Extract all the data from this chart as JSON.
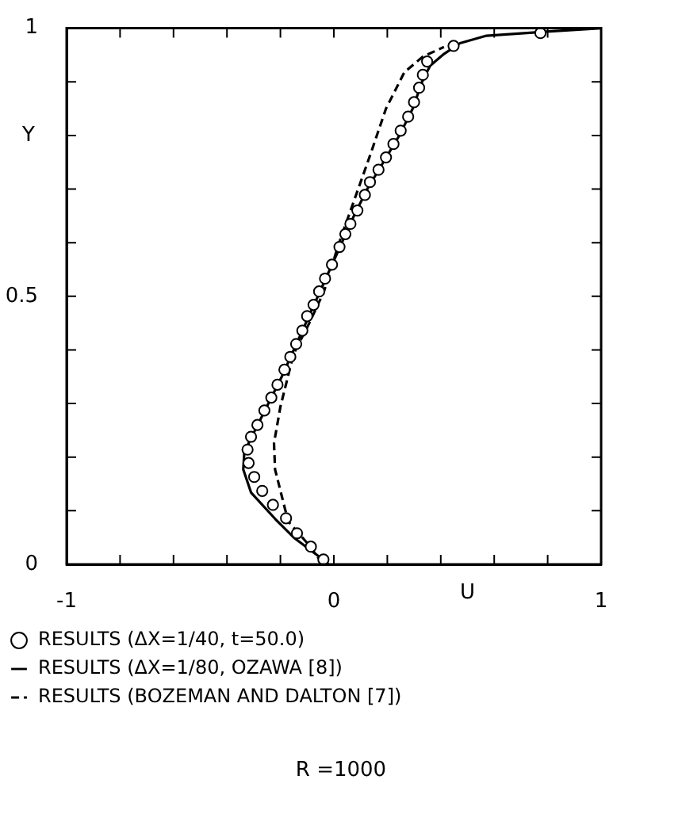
{
  "chart_data": {
    "type": "line",
    "xlabel": "U",
    "ylabel": "Y",
    "xlim": [
      -1,
      1
    ],
    "ylim": [
      0,
      1
    ],
    "xticks": [
      -1,
      {
        "value": -0.8,
        "label": null
      },
      {
        "value": -0.6,
        "label": null
      },
      {
        "value": -0.4,
        "label": null
      },
      {
        "value": -0.2,
        "label": null
      },
      0,
      {
        "value": 0.2,
        "label": null
      },
      {
        "value": 0.4,
        "label": null
      },
      {
        "value": 0.6,
        "label": null
      },
      {
        "value": 0.8,
        "label": null
      },
      1
    ],
    "yticks": [
      0,
      {
        "value": 0.1,
        "label": null
      },
      {
        "value": 0.2,
        "label": null
      },
      {
        "value": 0.3,
        "label": null
      },
      {
        "value": 0.4,
        "label": null
      },
      0.5,
      {
        "value": 0.6,
        "label": null
      },
      {
        "value": 0.7,
        "label": null
      },
      {
        "value": 0.8,
        "label": null
      },
      {
        "value": 0.9,
        "label": null
      },
      1
    ],
    "legend": "bottom",
    "annotations": [
      "R =1000"
    ],
    "series": [
      {
        "name": "RESULTS (ΔX=1/40, t=50.0)",
        "type": "scatter",
        "marker": "circle",
        "color": "#000000",
        "x": [
          0.773,
          0.448,
          0.349,
          0.333,
          0.319,
          0.3,
          0.278,
          0.25,
          0.223,
          0.195,
          0.167,
          0.135,
          0.116,
          0.088,
          0.062,
          0.043,
          0.021,
          -0.007,
          -0.033,
          -0.055,
          -0.076,
          -0.1,
          -0.118,
          -0.141,
          -0.163,
          -0.185,
          -0.211,
          -0.234,
          -0.26,
          -0.286,
          -0.31,
          -0.323,
          -0.319,
          -0.298,
          -0.268,
          -0.228,
          -0.179,
          -0.138,
          -0.086,
          -0.039
        ],
        "values": [
          0.991,
          0.967,
          0.938,
          0.913,
          0.889,
          0.862,
          0.835,
          0.809,
          0.784,
          0.759,
          0.736,
          0.713,
          0.689,
          0.66,
          0.635,
          0.616,
          0.592,
          0.559,
          0.533,
          0.509,
          0.484,
          0.463,
          0.436,
          0.411,
          0.387,
          0.363,
          0.335,
          0.311,
          0.287,
          0.26,
          0.238,
          0.214,
          0.189,
          0.163,
          0.137,
          0.111,
          0.086,
          0.058,
          0.033,
          0.009
        ]
      },
      {
        "name": "RESULTS (ΔX=1/80, OZAWA [8])",
        "line_style": "solid",
        "color": "#000000",
        "x": [
          -0.02,
          -0.062,
          -0.15,
          -0.22,
          -0.31,
          -0.339,
          -0.335,
          -0.295,
          -0.245,
          -0.195,
          -0.15,
          -0.105,
          -0.06,
          -0.015,
          0.03,
          0.075,
          0.125,
          0.185,
          0.245,
          0.295,
          0.33,
          0.36,
          0.412,
          0.472,
          0.571,
          0.808,
          1.0
        ],
        "values": [
          0,
          0.017,
          0.05,
          0.085,
          0.134,
          0.177,
          0.21,
          0.25,
          0.3,
          0.35,
          0.4,
          0.45,
          0.5,
          0.55,
          0.6,
          0.65,
          0.7,
          0.75,
          0.8,
          0.85,
          0.9,
          0.93,
          0.952,
          0.972,
          0.986,
          0.994,
          1.0
        ]
      },
      {
        "name": "RESULTS (BOZEMAN AND DALTON [7])",
        "line_style": "dashed",
        "color": "#000000",
        "x": [
          -0.043,
          -0.1,
          -0.171,
          -0.22,
          -0.224,
          -0.2,
          -0.151,
          -0.092,
          -0.037,
          0.017,
          0.066,
          0.135,
          0.195,
          0.264,
          0.333,
          0.412
        ],
        "values": [
          0.002,
          0.04,
          0.08,
          0.177,
          0.226,
          0.294,
          0.392,
          0.45,
          0.509,
          0.596,
          0.665,
          0.762,
          0.85,
          0.918,
          0.947,
          0.965
        ]
      }
    ]
  }
}
